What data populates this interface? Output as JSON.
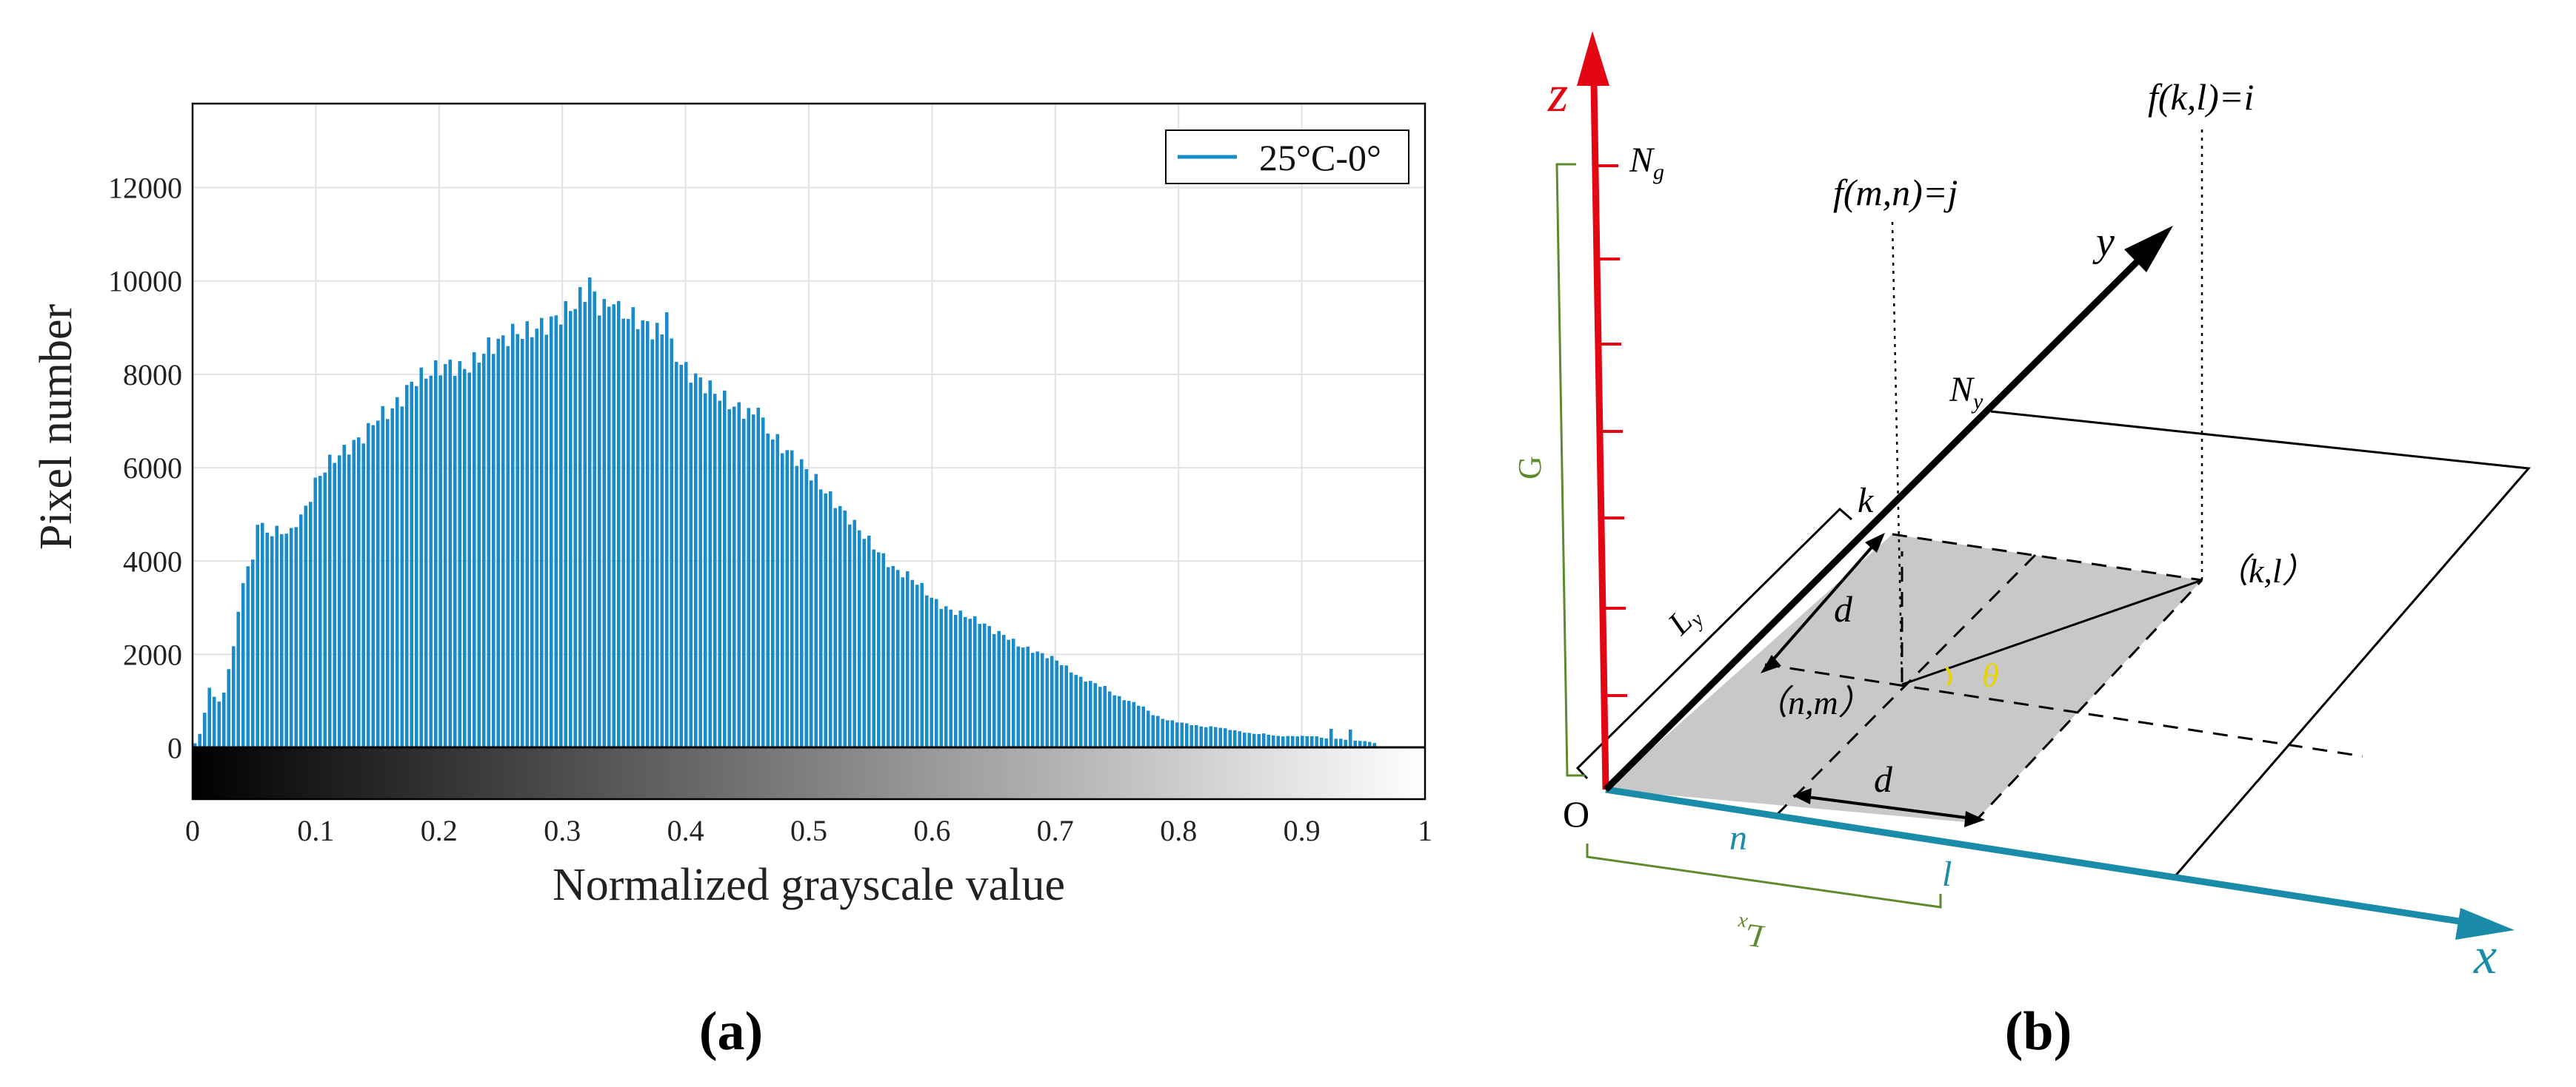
{
  "chart_data": {
    "type": "bar",
    "xlabel": "Normalized grayscale value",
    "ylabel": "Pixel number",
    "xlim": [
      0,
      1
    ],
    "ylim": [
      -1100,
      13800
    ],
    "xticks": [
      "0",
      "0.1",
      "0.2",
      "0.3",
      "0.4",
      "0.5",
      "0.6",
      "0.7",
      "0.8",
      "0.9",
      "1"
    ],
    "yticks": [
      "0",
      "2000",
      "4000",
      "6000",
      "8000",
      "10000",
      "12000"
    ],
    "grid": true,
    "colorbar": "grayscale 0 to 1",
    "legend_position": "top-right",
    "series": [
      {
        "name": "25°C-0°",
        "color": "#1a8bc9",
        "profile_x": [
          0,
          0.006,
          0.01,
          0.013,
          0.017,
          0.021,
          0.025,
          0.03,
          0.034,
          0.038,
          0.042,
          0.05,
          0.055,
          0.06,
          0.07,
          0.08,
          0.085,
          0.09,
          0.1,
          0.11,
          0.12,
          0.13,
          0.14,
          0.15,
          0.16,
          0.17,
          0.18,
          0.19,
          0.2,
          0.21,
          0.22,
          0.23,
          0.24,
          0.25,
          0.26,
          0.27,
          0.28,
          0.29,
          0.3,
          0.31,
          0.32,
          0.33,
          0.34,
          0.35,
          0.36,
          0.37,
          0.38,
          0.39,
          0.4,
          0.41,
          0.42,
          0.43,
          0.44,
          0.45,
          0.46,
          0.47,
          0.48,
          0.49,
          0.5,
          0.51,
          0.52,
          0.53,
          0.54,
          0.55,
          0.56,
          0.57,
          0.58,
          0.59,
          0.6,
          0.61,
          0.62,
          0.63,
          0.64,
          0.65,
          0.66,
          0.67,
          0.68,
          0.69,
          0.7,
          0.71,
          0.72,
          0.73,
          0.74,
          0.75,
          0.76,
          0.77,
          0.78,
          0.79,
          0.8,
          0.81,
          0.82,
          0.83,
          0.84,
          0.85,
          0.86,
          0.87,
          0.88,
          0.89,
          0.9,
          0.91,
          0.92,
          0.93,
          0.94,
          0.95,
          0.96,
          0.964,
          0.97,
          0.98,
          0.99,
          0.998,
          1
        ],
        "profile_y": [
          0,
          300,
          800,
          1300,
          1100,
          1000,
          1100,
          1800,
          2300,
          3000,
          3800,
          4000,
          4800,
          4600,
          4650,
          4600,
          4900,
          5000,
          5700,
          6100,
          6300,
          6500,
          6700,
          7100,
          7200,
          7500,
          7900,
          8000,
          8150,
          8200,
          8100,
          8300,
          8600,
          8700,
          8900,
          8900,
          9000,
          9100,
          9300,
          9500,
          9800,
          9500,
          9400,
          9300,
          9200,
          9000,
          8900,
          8500,
          8100,
          7900,
          7700,
          7500,
          7300,
          7200,
          7000,
          6700,
          6400,
          6200,
          5900,
          5600,
          5300,
          5000,
          4700,
          4400,
          4100,
          3800,
          3700,
          3500,
          3200,
          3000,
          2900,
          2800,
          2700,
          2500,
          2400,
          2200,
          2100,
          2000,
          1900,
          1700,
          1500,
          1400,
          1300,
          1100,
          1000,
          900,
          700,
          600,
          550,
          500,
          450,
          450,
          400,
          350,
          300,
          300,
          250,
          250,
          250,
          250,
          200,
          200,
          150,
          150,
          100,
          0,
          0,
          0,
          0,
          0,
          900
        ],
        "spikes": [
          {
            "x": 0.053,
            "y": 4900
          },
          {
            "x": 0.321,
            "y": 10050
          },
          {
            "x": 0.343,
            "y": 9700
          },
          {
            "x": 0.385,
            "y": 9500
          },
          {
            "x": 0.46,
            "y": 7450
          },
          {
            "x": 0.925,
            "y": 400
          },
          {
            "x": 0.94,
            "y": 400
          }
        ]
      }
    ]
  },
  "panels": {
    "a_label": "(a)",
    "b_label": "(b)"
  },
  "diagram": {
    "axis_z": "z",
    "axis_x": "x",
    "axis_y": "y",
    "origin": "O",
    "Ng": "N",
    "Ng_sub": "g",
    "Ny": "N",
    "Ny_sub": "y",
    "G": "G",
    "Ly": "L",
    "Ly_sub": "y",
    "Lx": "L",
    "Lx_sub": "x",
    "k": "k",
    "n": "n",
    "l": "l",
    "d1": "d",
    "d2": "d",
    "theta": "θ",
    "fmn_f": "f",
    "fmn_args": "(m,n)=j",
    "fkl_f": "f",
    "fkl_args": "(k,l)=i",
    "nm_point": "（n,m）",
    "kl_point": "（k,l）",
    "colors": {
      "z_axis": "#e30613",
      "x_axis": "#1a8ba8",
      "y_axis": "#000000",
      "green": "#5e8a2e",
      "theta": "#e6d400",
      "region_fill": "#c8c8c8"
    }
  }
}
